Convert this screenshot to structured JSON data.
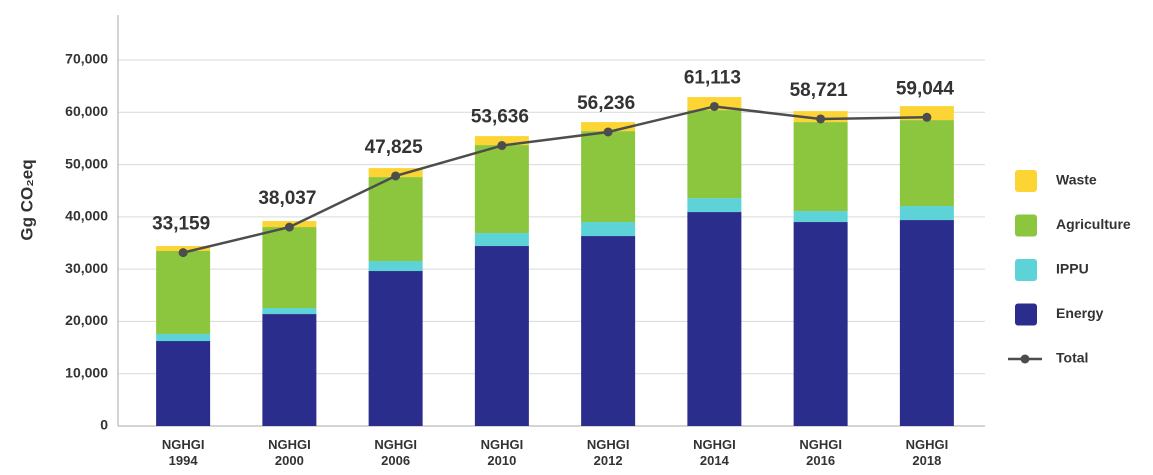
{
  "chart_data": {
    "type": "stacked-bar-line",
    "y_label": "Gg CO₂eq",
    "categories": [
      "NGHGI 1994",
      "NGHGI 2000",
      "NGHGI 2006",
      "NGHGI 2010",
      "NGHGI 2012",
      "NGHGI 2014",
      "NGHGI 2016",
      "NGHGI 2018"
    ],
    "series": [
      {
        "name": "Energy",
        "color": "#2b2d8c",
        "values": [
          16250,
          21410,
          29640,
          34420,
          36330,
          40920,
          39010,
          39390
        ]
      },
      {
        "name": "IPPU",
        "color": "#5dd3d8",
        "values": [
          1350,
          1150,
          1910,
          2480,
          2680,
          2670,
          2100,
          2680
        ]
      },
      {
        "name": "Agriculture",
        "color": "#8cc63f",
        "values": [
          15870,
          15490,
          16060,
          16830,
          17390,
          16830,
          17020,
          16440
        ]
      },
      {
        "name": "Waste",
        "color": "#fcd535",
        "values": [
          950,
          1150,
          1720,
          1720,
          1730,
          2490,
          2100,
          2680
        ]
      },
      {
        "name": "Total",
        "color": "#4d4d4d",
        "type": "line",
        "values": [
          33159,
          38037,
          47825,
          53636,
          56236,
          61113,
          58721,
          59044
        ],
        "value_labels": [
          "33,159",
          "38,037",
          "47,825",
          "53,636",
          "56,236",
          "61,113",
          "58,721",
          "59,044"
        ]
      }
    ],
    "ylim": [
      0,
      70000
    ],
    "yticks": [
      0,
      {
        "value": 10000,
        "label": "10,000"
      },
      {
        "value": 20000,
        "label": "20,000"
      },
      {
        "value": 30000,
        "label": "30,000"
      },
      {
        "value": 40000,
        "label": "40,000"
      },
      {
        "value": 50000,
        "label": "50,000"
      },
      {
        "value": 60000,
        "label": "60,000"
      },
      {
        "value": 70000,
        "label": "70,000"
      }
    ],
    "grid": true,
    "legend": "right"
  }
}
